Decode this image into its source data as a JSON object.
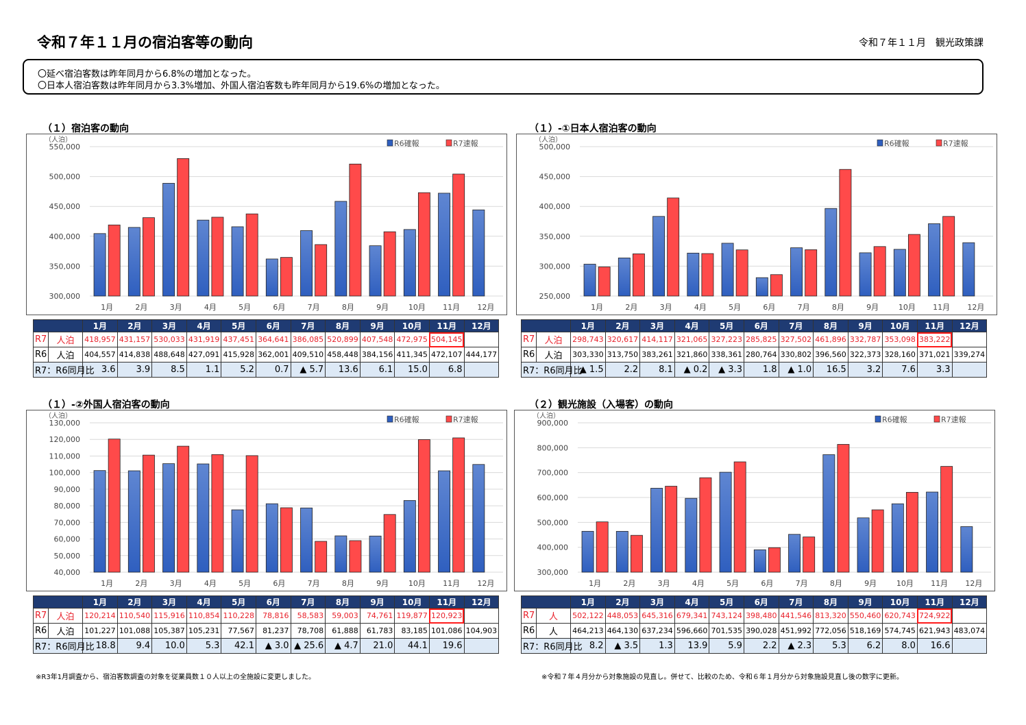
{
  "header": {
    "title": "令和７年１１月の宿泊客等の動向",
    "dept": "令和７年１１月　観光政策課"
  },
  "summary": [
    "〇延べ宿泊客数は昨年同月から6.8%の増加となった。",
    "〇日本人宿泊客数は昨年同月から3.3%増加、外国人宿泊客数も昨年同月から19.6%の増加となった。"
  ],
  "months": [
    "1月",
    "2月",
    "3月",
    "4月",
    "5月",
    "6月",
    "7月",
    "8月",
    "9月",
    "10月",
    "11月",
    "12月"
  ],
  "legend": {
    "r6": "R6確報",
    "r7": "R7速報"
  },
  "colors": {
    "r6": "#2f5fbf",
    "r7": "#ff4a4a",
    "header": "#1f3b73",
    "highlight": "#ff1a1a"
  },
  "ratio_label": "R7：R6同月比",
  "chart_data": [
    {
      "type": "bar",
      "title": "（１）宿泊客の動向",
      "unit": "（人泊）",
      "ylim": [
        300000,
        550000
      ],
      "ystep": 50000,
      "grid": true,
      "legend": "top-right",
      "row_unit": "人泊",
      "categories": [
        "1月",
        "2月",
        "3月",
        "4月",
        "5月",
        "6月",
        "7月",
        "8月",
        "9月",
        "10月",
        "11月",
        "12月"
      ],
      "series": [
        {
          "name": "R6確報",
          "values": [
            404557,
            414838,
            488648,
            427091,
            415928,
            362001,
            409510,
            458448,
            384156,
            411345,
            472107,
            444177
          ]
        },
        {
          "name": "R7速報",
          "values": [
            418957,
            431157,
            530033,
            431919,
            437451,
            364641,
            386085,
            520899,
            407548,
            472975,
            504145,
            null
          ]
        }
      ],
      "table": {
        "r7": [
          "418,957",
          "431,157",
          "530,033",
          "431,919",
          "437,451",
          "364,641",
          "386,085",
          "520,899",
          "407,548",
          "472,975",
          "504,145",
          ""
        ],
        "r6": [
          "404,557",
          "414,838",
          "488,648",
          "427,091",
          "415,928",
          "362,001",
          "409,510",
          "458,448",
          "384,156",
          "411,345",
          "472,107",
          "444,177"
        ],
        "ratio": [
          "3.6",
          "3.9",
          "8.5",
          "1.1",
          "5.2",
          "0.7",
          "▲ 5.7",
          "13.6",
          "6.1",
          "15.0",
          "6.8",
          ""
        ]
      }
    },
    {
      "type": "bar",
      "title": "（１）-①日本人宿泊客の動向",
      "unit": "（人泊）",
      "ylim": [
        250000,
        500000
      ],
      "ystep": 50000,
      "grid": true,
      "legend": "top-right",
      "row_unit": "人泊",
      "categories": [
        "1月",
        "2月",
        "3月",
        "4月",
        "5月",
        "6月",
        "7月",
        "8月",
        "9月",
        "10月",
        "11月",
        "12月"
      ],
      "series": [
        {
          "name": "R6確報",
          "values": [
            303330,
            313750,
            383261,
            321860,
            338361,
            280764,
            330802,
            396560,
            322373,
            328160,
            371021,
            339274
          ]
        },
        {
          "name": "R7速報",
          "values": [
            298743,
            320617,
            414117,
            321065,
            327223,
            285825,
            327502,
            461896,
            332787,
            353098,
            383222,
            null
          ]
        }
      ],
      "table": {
        "r7": [
          "298,743",
          "320,617",
          "414,117",
          "321,065",
          "327,223",
          "285,825",
          "327,502",
          "461,896",
          "332,787",
          "353,098",
          "383,222",
          ""
        ],
        "r6": [
          "303,330",
          "313,750",
          "383,261",
          "321,860",
          "338,361",
          "280,764",
          "330,802",
          "396,560",
          "322,373",
          "328,160",
          "371,021",
          "339,274"
        ],
        "ratio": [
          "▲ 1.5",
          "2.2",
          "8.1",
          "▲ 0.2",
          "▲ 3.3",
          "1.8",
          "▲ 1.0",
          "16.5",
          "3.2",
          "7.6",
          "3.3",
          ""
        ]
      }
    },
    {
      "type": "bar",
      "title": "（１）-②外国人宿泊客の動向",
      "unit": "（人泊）",
      "ylim": [
        40000,
        130000
      ],
      "ystep": 10000,
      "grid": true,
      "legend": "top-right",
      "row_unit": "人泊",
      "categories": [
        "1月",
        "2月",
        "3月",
        "4月",
        "5月",
        "6月",
        "7月",
        "8月",
        "9月",
        "10月",
        "11月",
        "12月"
      ],
      "series": [
        {
          "name": "R6確報",
          "values": [
            101227,
            101088,
            105387,
            105231,
            77567,
            81237,
            78708,
            61888,
            61783,
            83185,
            101086,
            104903
          ]
        },
        {
          "name": "R7速報",
          "values": [
            120214,
            110540,
            115916,
            110854,
            110228,
            78816,
            58583,
            59003,
            74761,
            119877,
            120923,
            null
          ]
        }
      ],
      "table": {
        "r7": [
          "120,214",
          "110,540",
          "115,916",
          "110,854",
          "110,228",
          "78,816",
          "58,583",
          "59,003",
          "74,761",
          "119,877",
          "120,923",
          ""
        ],
        "r6": [
          "101,227",
          "101,088",
          "105,387",
          "105,231",
          "77,567",
          "81,237",
          "78,708",
          "61,888",
          "61,783",
          "83,185",
          "101,086",
          "104,903"
        ],
        "ratio": [
          "18.8",
          "9.4",
          "10.0",
          "5.3",
          "42.1",
          "▲ 3.0",
          "▲ 25.6",
          "▲ 4.7",
          "21.0",
          "44.1",
          "19.6",
          ""
        ]
      }
    },
    {
      "type": "bar",
      "title": "（２）観光施設（入場客）の動向",
      "unit": "（人泊）",
      "ylim": [
        300000,
        900000
      ],
      "ystep": 100000,
      "grid": true,
      "legend": "top-right",
      "row_unit": "人",
      "categories": [
        "1月",
        "2月",
        "3月",
        "4月",
        "5月",
        "6月",
        "7月",
        "8月",
        "9月",
        "10月",
        "11月",
        "12月"
      ],
      "series": [
        {
          "name": "R6確報",
          "values": [
            464213,
            464130,
            637234,
            596660,
            701535,
            390028,
            451992,
            772056,
            518169,
            574745,
            621943,
            483074
          ]
        },
        {
          "name": "R7速報",
          "values": [
            502122,
            448053,
            645316,
            679341,
            743124,
            398480,
            441546,
            813320,
            550460,
            620743,
            724922,
            null
          ]
        }
      ],
      "table": {
        "r7": [
          "502,122",
          "448,053",
          "645,316",
          "679,341",
          "743,124",
          "398,480",
          "441,546",
          "813,320",
          "550,460",
          "620,743",
          "724,922",
          ""
        ],
        "r6": [
          "464,213",
          "464,130",
          "637,234",
          "596,660",
          "701,535",
          "390,028",
          "451,992",
          "772,056",
          "518,169",
          "574,745",
          "621,943",
          "483,074"
        ],
        "ratio": [
          "8.2",
          "▲ 3.5",
          "1.3",
          "13.9",
          "5.9",
          "2.2",
          "▲ 2.3",
          "5.3",
          "6.2",
          "8.0",
          "16.6",
          ""
        ]
      }
    }
  ],
  "footnotes": [
    "※R3年1月調査から、宿泊客数調査の対象を従業員数１０人以上の全施設に変更しました。",
    "※令和７年４月分から対象施設の見直し。併せて、比較のため、令和６年１月分から対象施設見直し後の数字に更新。"
  ]
}
